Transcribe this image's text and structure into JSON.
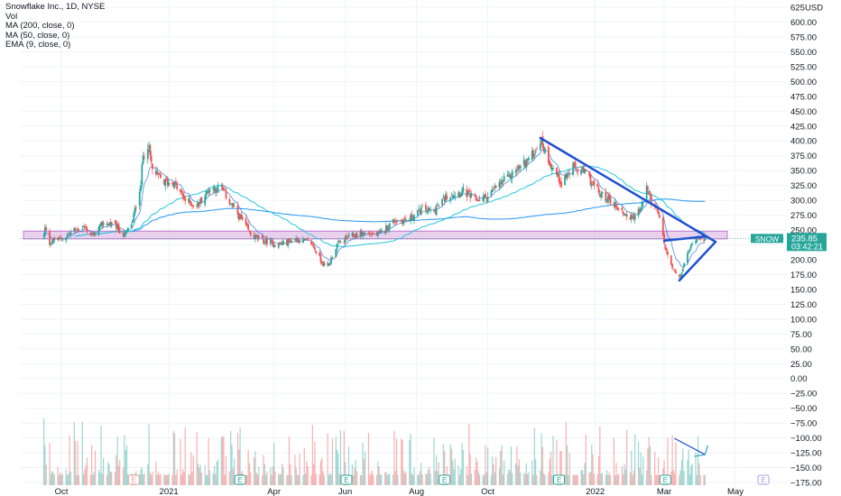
{
  "legend": {
    "title": "Snowflake Inc., 1D, NYSE",
    "vol": "Vol",
    "ma200": "MA (200, close, 0)",
    "ma50": "MA (50, close, 0)",
    "ema9": "EMA (9, close, 0)"
  },
  "colors": {
    "up": "#26a69a",
    "down": "#ef5350",
    "ma200": "#2196f3",
    "ma50": "#26c6da",
    "ema9": "#1e6fd9",
    "trendline": "#1e4fd1",
    "zone_fill": "#e1bee7",
    "zone_stroke": "#ab47bc",
    "price_line": "#26a69a"
  },
  "chart_data": {
    "type": "candlestick",
    "title": "Snowflake Inc., 1D, NYSE",
    "currency_label": "USD",
    "y_ticks": [
      "625",
      "600.00",
      "575.00",
      "550.00",
      "525.00",
      "500.00",
      "475.00",
      "450.00",
      "425.00",
      "400.00",
      "375.00",
      "350.00",
      "325.00",
      "300.00",
      "275.00",
      "250.00",
      "225.00",
      "200.00",
      "175.00",
      "150.00",
      "125.00",
      "100.00",
      "75.00",
      "50.00",
      "25.00",
      "0.00",
      "−25.00",
      "−50.00",
      "−75.00",
      "−100.00",
      "−125.00",
      "−150.00",
      "−175.00"
    ],
    "y_tick_values": [
      625,
      600,
      575,
      550,
      525,
      500,
      475,
      450,
      425,
      400,
      375,
      350,
      325,
      300,
      275,
      250,
      225,
      200,
      175,
      150,
      125,
      100,
      75,
      50,
      25,
      0,
      -25,
      -50,
      -75,
      -100,
      -125,
      -150,
      -175
    ],
    "ylim": [
      -182,
      631
    ],
    "x_ticks": [
      "Oct",
      "2021",
      "Apr",
      "Jun",
      "Aug",
      "Oct",
      "2022",
      "Mar",
      "May"
    ],
    "x_tick_dates": [
      "2020-10-01",
      "2021-01-01",
      "2021-04-01",
      "2021-06-01",
      "2021-08-01",
      "2021-10-01",
      "2022-01-01",
      "2022-03-01",
      "2022-05-01"
    ],
    "earnings_dates": [
      "2020-12-02",
      "2021-03-03",
      "2021-06-02",
      "2021-08-25",
      "2021-12-01",
      "2022-03-02",
      "2022-05-25"
    ],
    "earnings_label": "E",
    "last_price_label": "SNOW",
    "last_price": "235.85",
    "countdown": "03:42:21",
    "last_price_value": 235.85,
    "price_anchors": [
      [
        "2020-09-16",
        240
      ],
      [
        "2020-09-17",
        253
      ],
      [
        "2020-09-21",
        228
      ],
      [
        "2020-09-25",
        233
      ],
      [
        "2020-10-02",
        235
      ],
      [
        "2020-10-12",
        250
      ],
      [
        "2020-10-20",
        255
      ],
      [
        "2020-10-28",
        240
      ],
      [
        "2020-11-06",
        262
      ],
      [
        "2020-11-16",
        258
      ],
      [
        "2020-11-24",
        240
      ],
      [
        "2020-12-01",
        265
      ],
      [
        "2020-12-08",
        330
      ],
      [
        "2020-12-10",
        375
      ],
      [
        "2020-12-14",
        395
      ],
      [
        "2020-12-18",
        350
      ],
      [
        "2020-12-28",
        330
      ],
      [
        "2021-01-05",
        330
      ],
      [
        "2021-01-15",
        300
      ],
      [
        "2021-01-25",
        290
      ],
      [
        "2021-02-05",
        320
      ],
      [
        "2021-02-15",
        320
      ],
      [
        "2021-02-26",
        285
      ],
      [
        "2021-03-05",
        265
      ],
      [
        "2021-03-12",
        242
      ],
      [
        "2021-03-22",
        232
      ],
      [
        "2021-04-05",
        225
      ],
      [
        "2021-04-20",
        235
      ],
      [
        "2021-05-03",
        228
      ],
      [
        "2021-05-12",
        196
      ],
      [
        "2021-05-17",
        188
      ],
      [
        "2021-05-25",
        225
      ],
      [
        "2021-06-03",
        237
      ],
      [
        "2021-06-15",
        245
      ],
      [
        "2021-06-30",
        242
      ],
      [
        "2021-07-12",
        265
      ],
      [
        "2021-07-26",
        268
      ],
      [
        "2021-08-05",
        285
      ],
      [
        "2021-08-16",
        282
      ],
      [
        "2021-08-27",
        308
      ],
      [
        "2021-09-10",
        315
      ],
      [
        "2021-09-20",
        300
      ],
      [
        "2021-09-30",
        305
      ],
      [
        "2021-10-10",
        325
      ],
      [
        "2021-10-25",
        350
      ],
      [
        "2021-11-08",
        375
      ],
      [
        "2021-11-15",
        402
      ],
      [
        "2021-11-24",
        360
      ],
      [
        "2021-12-03",
        330
      ],
      [
        "2021-12-13",
        355
      ],
      [
        "2021-12-24",
        345
      ],
      [
        "2022-01-05",
        310
      ],
      [
        "2022-01-14",
        300
      ],
      [
        "2022-01-24",
        280
      ],
      [
        "2022-02-01",
        270
      ],
      [
        "2022-02-09",
        285
      ],
      [
        "2022-02-14",
        322
      ],
      [
        "2022-02-18",
        300
      ],
      [
        "2022-02-25",
        270
      ],
      [
        "2022-03-02",
        218
      ],
      [
        "2022-03-08",
        185
      ],
      [
        "2022-03-14",
        168
      ],
      [
        "2022-03-22",
        215
      ],
      [
        "2022-03-29",
        240
      ],
      [
        "2022-04-05",
        236
      ]
    ],
    "volume_scale_note": "volume bars shown relative, axis unlabeled",
    "horizontal_zone": [
      235,
      248
    ],
    "trendlines": [
      [
        [
          "2021-11-15",
          405
        ],
        [
          "2022-04-14",
          230
        ]
      ],
      [
        [
          "2022-03-14",
          165
        ],
        [
          "2022-04-14",
          230
        ]
      ],
      [
        [
          "2022-03-01",
          232
        ],
        [
          "2022-04-05",
          239
        ]
      ],
      [
        [
          "2022-03-10",
          -101
        ],
        [
          "2022-04-05",
          -128
        ]
      ]
    ]
  }
}
